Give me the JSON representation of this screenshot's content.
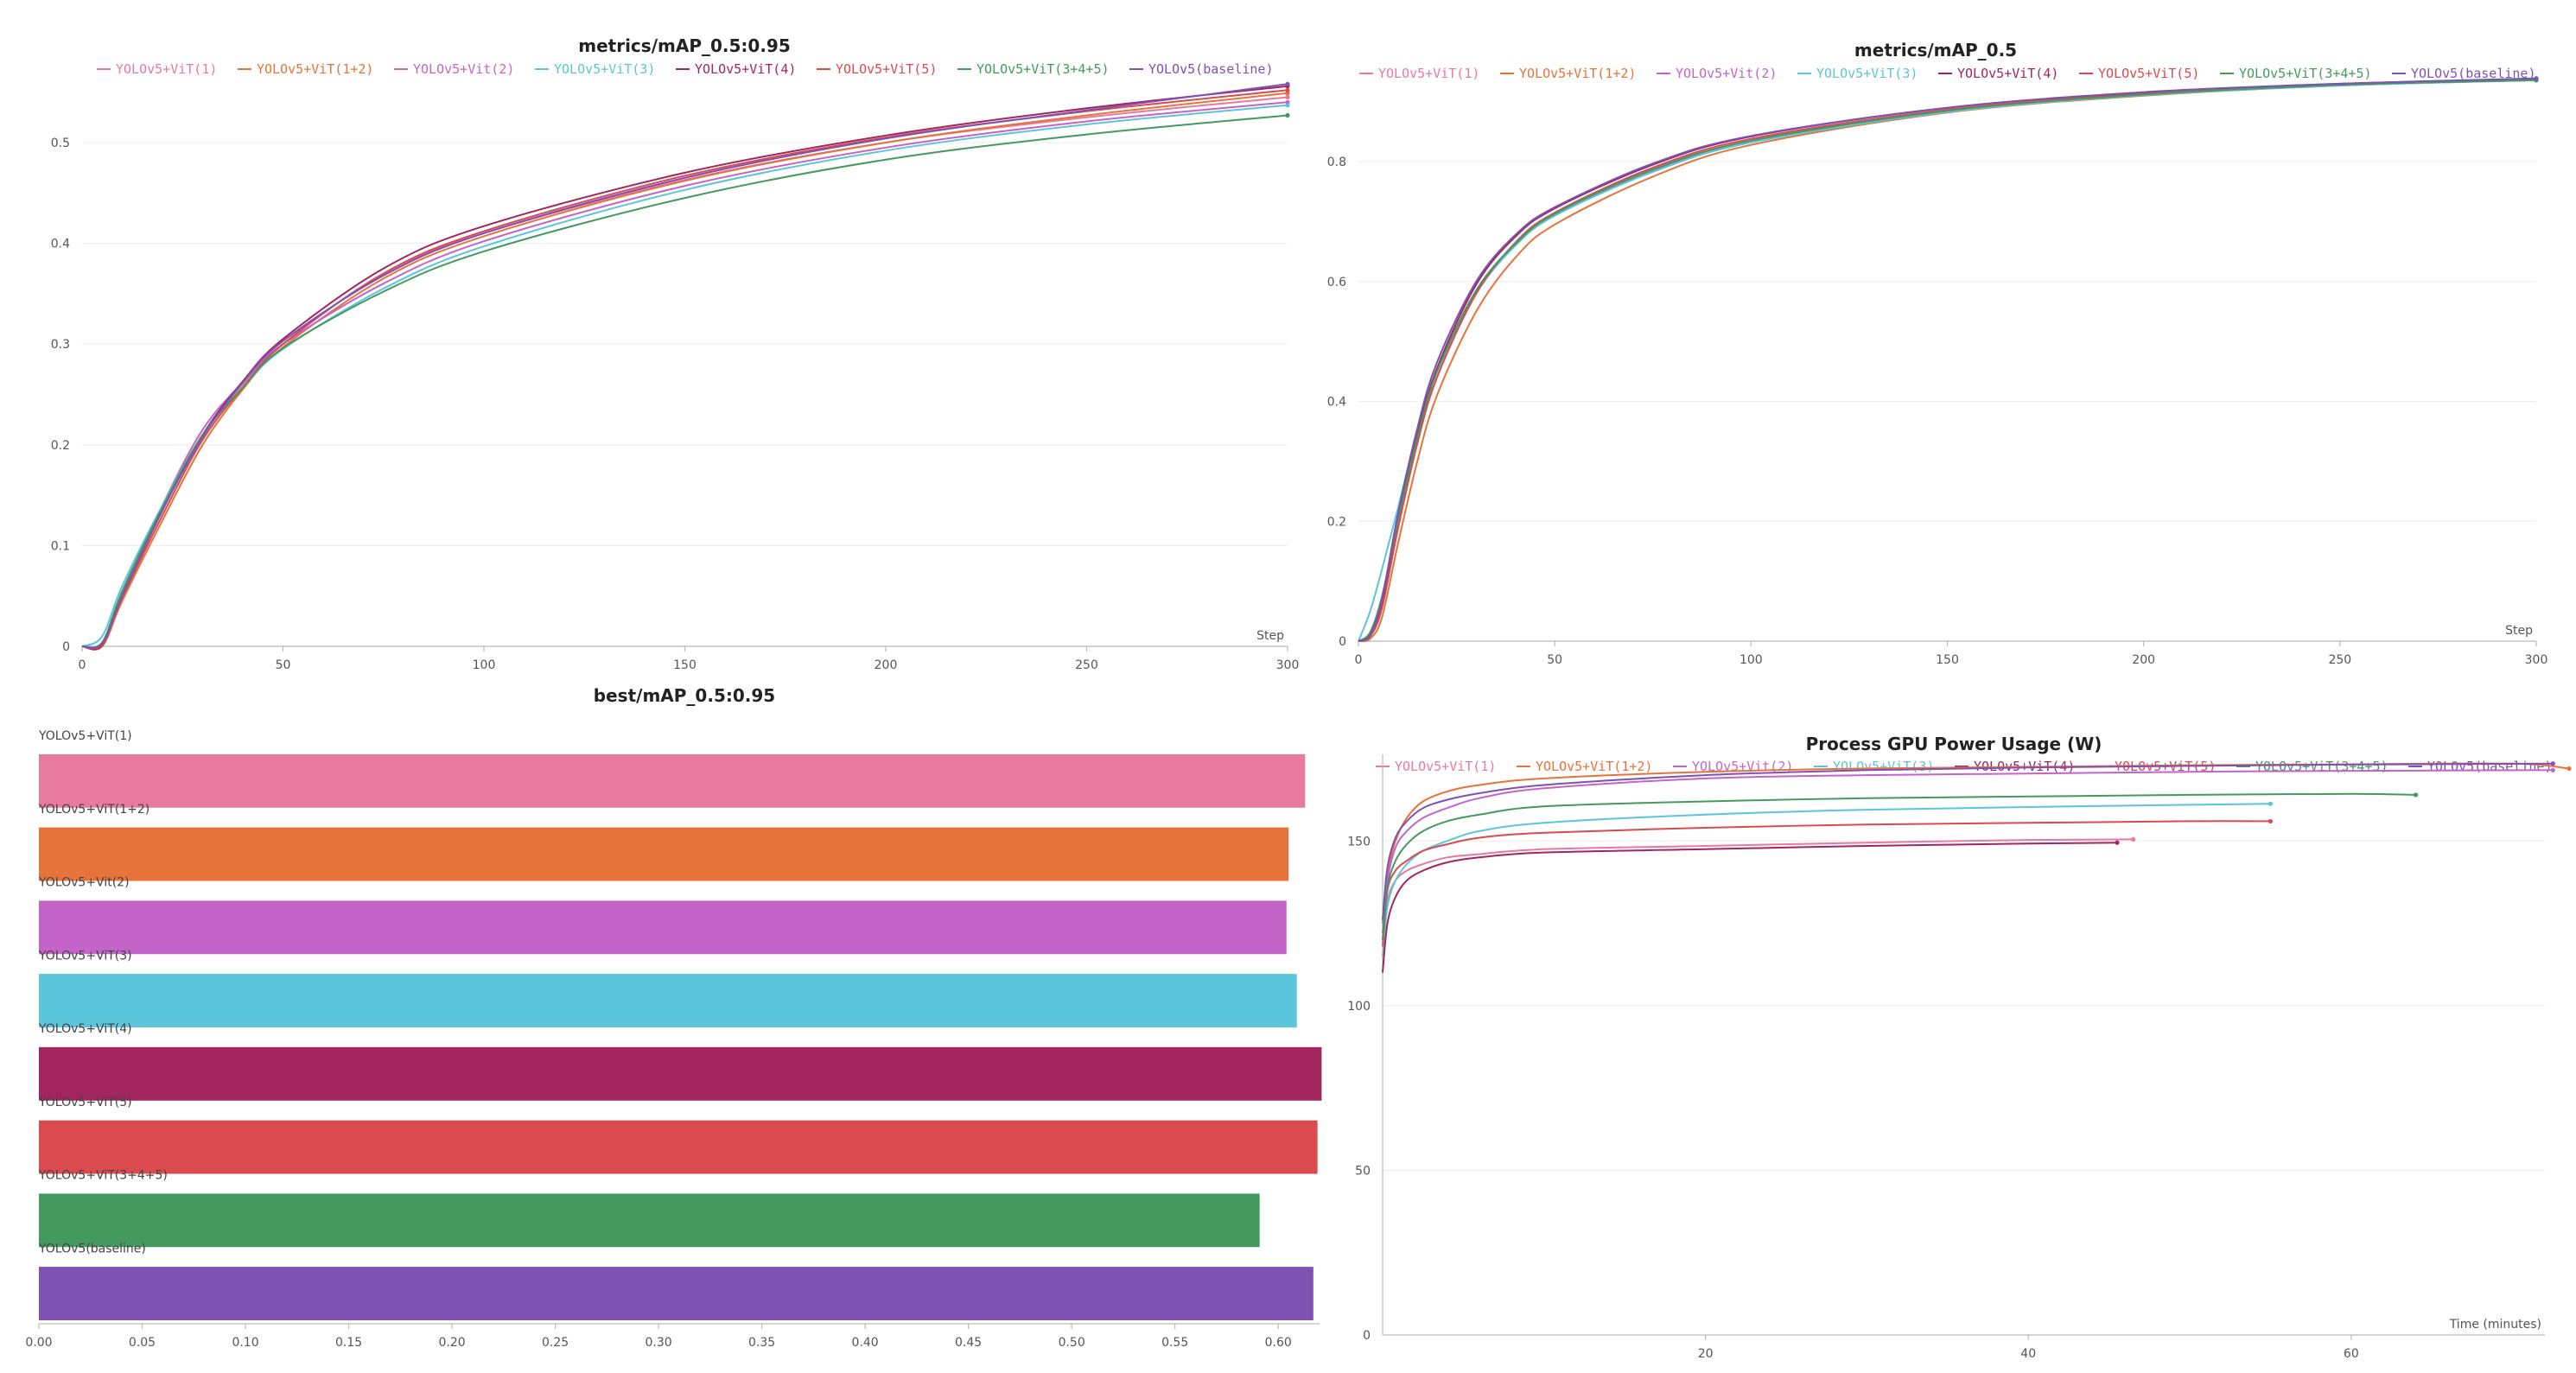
{
  "series_colors": {
    "YOLOv5+ViT(1)": "#e8799f",
    "YOLOv5+ViT(1+2)": "#e6743a",
    "YOLOv5+Vit(2)": "#c464c8",
    "YOLOv5+ViT(3)": "#5bc5db",
    "YOLOv5+ViT(4)": "#a1255f",
    "YOLOv5+ViT(5)": "#da4a4e",
    "YOLOv5+ViT(3+4+5)": "#449a5e",
    "YOLOv5(baseline)": "#7d52b3"
  },
  "chart_data": [
    {
      "id": "map5095",
      "type": "line",
      "title": "metrics/mAP_0.5:0.95",
      "xlabel": "Step",
      "ylabel": "",
      "xlim": [
        0,
        300
      ],
      "ylim": [
        0,
        0.56
      ],
      "xticks": [
        0,
        50,
        100,
        150,
        200,
        250,
        300
      ],
      "yticks": [
        0,
        0.1,
        0.2,
        0.3,
        0.4,
        0.5
      ],
      "legend": [
        "YOLOv5+ViT(1)",
        "YOLOv5+ViT(1+2)",
        "YOLOv5+Vit(2)",
        "YOLOv5+ViT(3)",
        "YOLOv5+ViT(4)",
        "YOLOv5+ViT(5)",
        "YOLOv5+ViT(3+4+5)",
        "YOLOv5(baseline)"
      ],
      "legend_position": "top",
      "series": [
        {
          "name": "YOLOv5+ViT(1)",
          "x": [
            0,
            5,
            10,
            20,
            30,
            40,
            50,
            75,
            100,
            150,
            200,
            250,
            300
          ],
          "y": [
            0,
            0.002,
            0.05,
            0.135,
            0.21,
            0.26,
            0.3,
            0.37,
            0.41,
            0.463,
            0.5,
            0.525,
            0.545
          ]
        },
        {
          "name": "YOLOv5+ViT(1+2)",
          "x": [
            0,
            5,
            10,
            20,
            30,
            40,
            50,
            75,
            100,
            150,
            200,
            250,
            300
          ],
          "y": [
            0,
            0.0,
            0.045,
            0.125,
            0.2,
            0.255,
            0.297,
            0.365,
            0.407,
            0.462,
            0.5,
            0.527,
            0.549
          ]
        },
        {
          "name": "YOLOv5+Vit(2)",
          "x": [
            0,
            5,
            10,
            20,
            30,
            40,
            50,
            75,
            100,
            150,
            200,
            250,
            300
          ],
          "y": [
            0,
            0.003,
            0.052,
            0.14,
            0.215,
            0.262,
            0.3,
            0.36,
            0.402,
            0.457,
            0.495,
            0.521,
            0.54
          ]
        },
        {
          "name": "YOLOv5+ViT(3)",
          "x": [
            0,
            5,
            10,
            20,
            30,
            40,
            50,
            75,
            100,
            150,
            200,
            250,
            300
          ],
          "y": [
            0,
            0.01,
            0.06,
            0.14,
            0.21,
            0.257,
            0.295,
            0.355,
            0.397,
            0.453,
            0.492,
            0.518,
            0.537
          ]
        },
        {
          "name": "YOLOv5+ViT(4)",
          "x": [
            0,
            5,
            10,
            20,
            30,
            40,
            50,
            75,
            100,
            150,
            200,
            250,
            300
          ],
          "y": [
            0,
            0.001,
            0.05,
            0.135,
            0.21,
            0.263,
            0.305,
            0.375,
            0.417,
            0.47,
            0.507,
            0.534,
            0.556
          ]
        },
        {
          "name": "YOLOv5+ViT(5)",
          "x": [
            0,
            5,
            10,
            20,
            30,
            40,
            50,
            75,
            100,
            150,
            200,
            250,
            300
          ],
          "y": [
            0,
            0.002,
            0.048,
            0.13,
            0.205,
            0.257,
            0.3,
            0.37,
            0.412,
            0.467,
            0.505,
            0.531,
            0.552
          ]
        },
        {
          "name": "YOLOv5+ViT(3+4+5)",
          "x": [
            0,
            5,
            10,
            20,
            30,
            40,
            50,
            75,
            100,
            150,
            200,
            250,
            300
          ],
          "y": [
            0,
            0.004,
            0.055,
            0.138,
            0.21,
            0.257,
            0.296,
            0.352,
            0.392,
            0.445,
            0.483,
            0.508,
            0.527
          ]
        },
        {
          "name": "YOLOv5(baseline)",
          "x": [
            0,
            5,
            10,
            20,
            30,
            40,
            50,
            75,
            100,
            150,
            200,
            250,
            300
          ],
          "y": [
            0,
            0.003,
            0.05,
            0.135,
            0.208,
            0.262,
            0.303,
            0.368,
            0.41,
            0.465,
            0.504,
            0.532,
            0.558
          ]
        }
      ]
    },
    {
      "id": "map05",
      "type": "line",
      "title": "metrics/mAP_0.5",
      "xlabel": "Step",
      "ylabel": "",
      "xlim": [
        0,
        300
      ],
      "ylim": [
        0,
        0.94
      ],
      "xticks": [
        0,
        50,
        100,
        150,
        200,
        250,
        300
      ],
      "yticks": [
        0,
        0.2,
        0.4,
        0.6,
        0.8
      ],
      "legend": [
        "YOLOv5+ViT(1)",
        "YOLOv5+ViT(1+2)",
        "YOLOv5+Vit(2)",
        "YOLOv5+ViT(3)",
        "YOLOv5+ViT(4)",
        "YOLOv5+ViT(5)",
        "YOLOv5+ViT(3+4+5)",
        "YOLOv5(baseline)"
      ],
      "legend_position": "top",
      "series": [
        {
          "name": "YOLOv5+ViT(1)",
          "x": [
            0,
            3,
            6,
            10,
            15,
            20,
            30,
            40,
            50,
            75,
            100,
            150,
            200,
            250,
            300
          ],
          "y": [
            0,
            0.01,
            0.06,
            0.19,
            0.33,
            0.44,
            0.58,
            0.66,
            0.71,
            0.785,
            0.835,
            0.885,
            0.912,
            0.928,
            0.937
          ]
        },
        {
          "name": "YOLOv5+ViT(1+2)",
          "x": [
            0,
            3,
            6,
            10,
            15,
            20,
            30,
            40,
            50,
            75,
            100,
            150,
            200,
            250,
            300
          ],
          "y": [
            0,
            0.004,
            0.04,
            0.16,
            0.3,
            0.41,
            0.55,
            0.64,
            0.695,
            0.775,
            0.828,
            0.882,
            0.91,
            0.927,
            0.936
          ]
        },
        {
          "name": "YOLOv5+Vit(2)",
          "x": [
            0,
            3,
            6,
            10,
            15,
            20,
            30,
            40,
            50,
            75,
            100,
            150,
            200,
            250,
            300
          ],
          "y": [
            0,
            0.012,
            0.07,
            0.2,
            0.34,
            0.45,
            0.585,
            0.662,
            0.712,
            0.786,
            0.835,
            0.885,
            0.912,
            0.928,
            0.936
          ]
        },
        {
          "name": "YOLOv5+ViT(3)",
          "x": [
            0,
            3,
            6,
            10,
            15,
            20,
            30,
            40,
            50,
            75,
            100,
            150,
            200,
            250,
            300
          ],
          "y": [
            0,
            0.05,
            0.12,
            0.22,
            0.35,
            0.45,
            0.58,
            0.66,
            0.71,
            0.783,
            0.832,
            0.883,
            0.911,
            0.927,
            0.936
          ]
        },
        {
          "name": "YOLOv5+ViT(4)",
          "x": [
            0,
            3,
            6,
            10,
            15,
            20,
            30,
            40,
            50,
            75,
            100,
            150,
            200,
            250,
            300
          ],
          "y": [
            0,
            0.01,
            0.065,
            0.2,
            0.345,
            0.455,
            0.595,
            0.675,
            0.722,
            0.795,
            0.842,
            0.89,
            0.915,
            0.93,
            0.938
          ]
        },
        {
          "name": "YOLOv5+ViT(5)",
          "x": [
            0,
            3,
            6,
            10,
            15,
            20,
            30,
            40,
            50,
            75,
            100,
            150,
            200,
            250,
            300
          ],
          "y": [
            0,
            0.008,
            0.055,
            0.185,
            0.33,
            0.44,
            0.58,
            0.665,
            0.715,
            0.79,
            0.838,
            0.887,
            0.913,
            0.929,
            0.937
          ]
        },
        {
          "name": "YOLOv5+ViT(3+4+5)",
          "x": [
            0,
            3,
            6,
            10,
            15,
            20,
            30,
            40,
            50,
            75,
            100,
            150,
            200,
            250,
            300
          ],
          "y": [
            0,
            0.015,
            0.075,
            0.2,
            0.34,
            0.45,
            0.585,
            0.663,
            0.713,
            0.787,
            0.835,
            0.885,
            0.912,
            0.928,
            0.936
          ]
        },
        {
          "name": "YOLOv5(baseline)",
          "x": [
            0,
            3,
            6,
            10,
            15,
            20,
            30,
            40,
            50,
            75,
            100,
            150,
            200,
            250,
            300
          ],
          "y": [
            0,
            0.01,
            0.07,
            0.21,
            0.355,
            0.465,
            0.6,
            0.678,
            0.724,
            0.797,
            0.843,
            0.89,
            0.916,
            0.93,
            0.939
          ]
        }
      ]
    },
    {
      "id": "bestmap",
      "type": "bar",
      "title": "best/mAP_0.5:0.95",
      "orientation": "horizontal",
      "xlim": [
        0,
        0.62
      ],
      "xticks": [
        0.0,
        0.05,
        0.1,
        0.15,
        0.2,
        0.25,
        0.3,
        0.35,
        0.4,
        0.45,
        0.5,
        0.55,
        0.6
      ],
      "xtick_labels": [
        "0.00",
        "0.05",
        "0.10",
        "0.15",
        "0.20",
        "0.25",
        "0.30",
        "0.35",
        "0.40",
        "0.45",
        "0.50",
        "0.55",
        "0.60"
      ],
      "categories": [
        "YOLOv5+ViT(1)",
        "YOLOv5+ViT(1+2)",
        "YOLOv5+Vit(2)",
        "YOLOv5+ViT(3)",
        "YOLOv5+ViT(4)",
        "YOLOv5+ViT(5)",
        "YOLOv5+ViT(3+4+5)",
        "YOLOv5(baseline)"
      ],
      "values": [
        0.613,
        0.605,
        0.604,
        0.609,
        0.621,
        0.619,
        0.591,
        0.617
      ]
    },
    {
      "id": "gpupower",
      "type": "line",
      "title": "Process GPU Power Usage (W)",
      "xlabel": "Time (minutes)",
      "ylabel": "",
      "xlim": [
        0,
        72
      ],
      "ylim": [
        0,
        175
      ],
      "xticks": [
        20,
        40,
        60
      ],
      "yticks": [
        0,
        50,
        100,
        150
      ],
      "legend": [
        "YOLOv5+ViT(1)",
        "YOLOv5+ViT(1+2)",
        "YOLOv5+Vit(2)",
        "YOLOv5+ViT(3)",
        "YOLOv5+ViT(4)",
        "YOLOv5+ViT(5)",
        "YOLOv5+ViT(3+4+5)",
        "YOLOv5(baseline)"
      ],
      "legend_position": "top",
      "series": [
        {
          "name": "YOLOv5+ViT(1)",
          "x": [
            0,
            0.3,
            0.8,
            1.5,
            2.5,
            4,
            6,
            10,
            20,
            30,
            40,
            46.5
          ],
          "y": [
            120,
            132,
            138,
            141,
            143,
            145,
            146,
            147.5,
            148.5,
            149.5,
            150.3,
            150.5
          ]
        },
        {
          "name": "YOLOv5+ViT(1+2)",
          "x": [
            0,
            0.3,
            0.8,
            1.5,
            2.5,
            4,
            6,
            10,
            20,
            30,
            40,
            50,
            60,
            70,
            73.5
          ],
          "y": [
            125,
            140,
            150,
            157,
            162,
            165,
            167,
            169,
            171,
            172,
            172.5,
            173,
            173.3,
            173.5,
            172
          ]
        },
        {
          "name": "YOLOv5+Vit(2)",
          "x": [
            0,
            0.3,
            0.8,
            1.5,
            2.5,
            4,
            6,
            10,
            20,
            30,
            40,
            50,
            60,
            72.5
          ],
          "y": [
            122,
            138,
            148,
            153,
            157,
            160,
            163,
            166,
            169,
            170,
            170.5,
            171,
            171.3,
            171.5
          ]
        },
        {
          "name": "YOLOv5+ViT(3)",
          "x": [
            0,
            0.3,
            0.8,
            1.5,
            2.5,
            4,
            6,
            10,
            20,
            30,
            40,
            50,
            55
          ],
          "y": [
            115,
            130,
            138,
            143,
            147,
            150,
            153,
            155.5,
            158,
            159.5,
            160.3,
            161,
            161.3
          ]
        },
        {
          "name": "YOLOv5+ViT(4)",
          "x": [
            0,
            0.3,
            0.8,
            1.5,
            2.5,
            4,
            6,
            10,
            20,
            30,
            40,
            45.5
          ],
          "y": [
            110,
            125,
            133,
            138,
            141,
            143.5,
            145,
            146.5,
            147.5,
            148.5,
            149.2,
            149.5
          ]
        },
        {
          "name": "YOLOv5+ViT(5)",
          "x": [
            0,
            0.3,
            0.8,
            1.5,
            2.5,
            4,
            6,
            10,
            20,
            30,
            40,
            50,
            55
          ],
          "y": [
            118,
            135,
            141,
            144,
            147,
            149,
            151,
            152.5,
            154,
            155,
            155.5,
            156,
            156
          ]
        },
        {
          "name": "YOLOv5+ViT(3+4+5)",
          "x": [
            0,
            0.3,
            0.8,
            1.5,
            2.5,
            4,
            6,
            10,
            20,
            30,
            40,
            50,
            60,
            64
          ],
          "y": [
            120,
            136,
            144,
            149,
            153,
            156,
            158,
            160.5,
            162,
            163,
            163.5,
            164,
            164.3,
            164
          ]
        },
        {
          "name": "YOLOv5(baseline)",
          "x": [
            0,
            0.3,
            0.8,
            1.5,
            2.5,
            4,
            6,
            10,
            20,
            30,
            40,
            50,
            60,
            72.5
          ],
          "y": [
            126,
            142,
            151,
            156,
            160,
            162.5,
            164.5,
            167,
            170,
            171.5,
            172.3,
            172.8,
            173.2,
            173.5
          ]
        }
      ]
    }
  ]
}
